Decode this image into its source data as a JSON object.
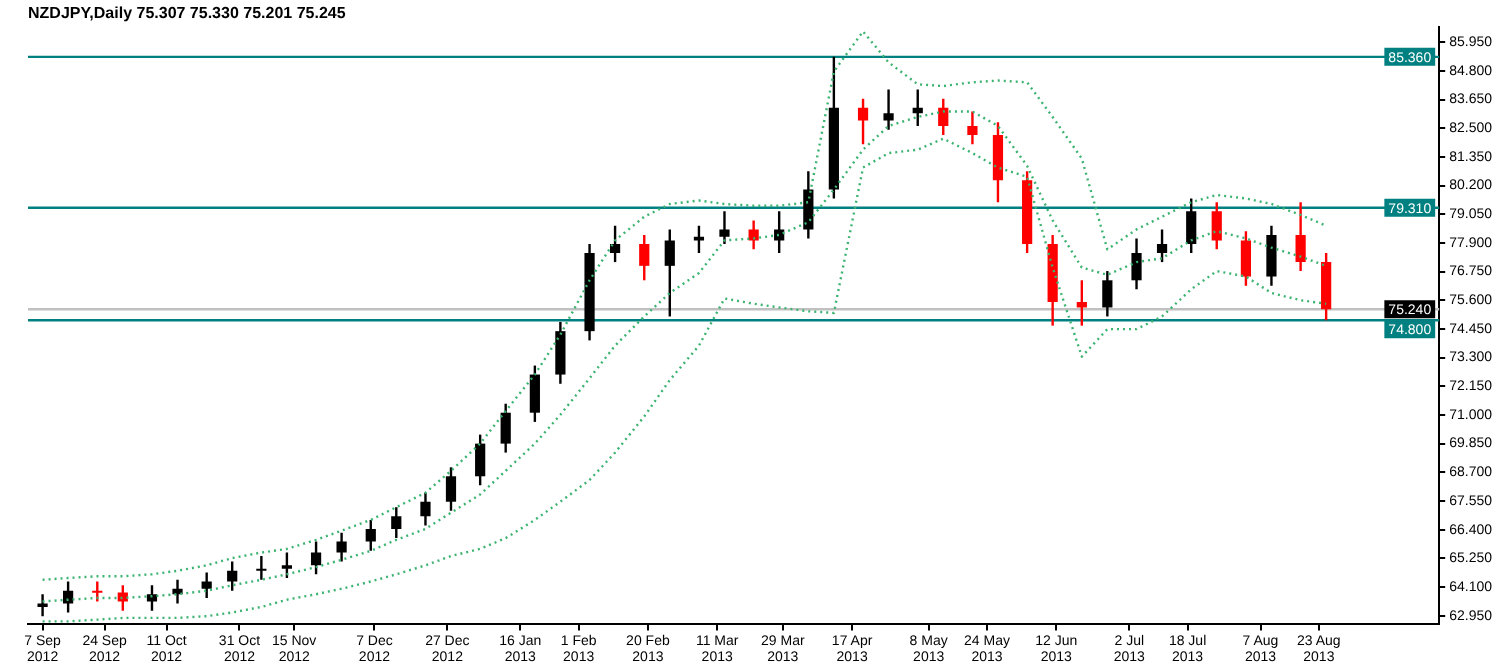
{
  "chart_data": {
    "type": "candlestick",
    "title": "NZDJPY,Daily 75.307 75.330 75.201 75.245",
    "x": [
      "2012-09-07",
      "2012-09-14",
      "2012-09-22",
      "2012-09-29",
      "2012-10-07",
      "2012-10-14",
      "2012-10-22",
      "2012-10-29",
      "2012-11-06",
      "2012-11-13",
      "2012-11-21",
      "2012-11-28",
      "2012-12-06",
      "2012-12-13",
      "2012-12-21",
      "2012-12-28",
      "2013-01-05",
      "2013-01-12",
      "2013-01-20",
      "2013-01-27",
      "2013-02-04",
      "2013-02-11",
      "2013-02-19",
      "2013-02-26",
      "2013-03-06",
      "2013-03-13",
      "2013-03-21",
      "2013-03-28",
      "2013-04-05",
      "2013-04-12",
      "2013-04-20",
      "2013-04-27",
      "2013-05-05",
      "2013-05-12",
      "2013-05-20",
      "2013-05-27",
      "2013-06-04",
      "2013-06-11",
      "2013-06-19",
      "2013-06-26",
      "2013-07-04",
      "2013-07-11",
      "2013-07-19",
      "2013-07-26",
      "2013-08-03",
      "2013-08-10",
      "2013-08-18",
      "2013-08-25"
    ],
    "ohlc": [
      [
        63.3,
        63.81,
        62.93,
        63.44
      ],
      [
        63.44,
        64.32,
        63.08,
        63.95
      ],
      [
        63.95,
        64.32,
        63.52,
        63.88
      ],
      [
        63.88,
        64.17,
        63.15,
        63.52
      ],
      [
        63.52,
        64.17,
        63.15,
        63.81
      ],
      [
        63.81,
        64.39,
        63.44,
        64.03
      ],
      [
        64.03,
        64.68,
        63.66,
        64.32
      ],
      [
        64.32,
        65.12,
        63.95,
        64.75
      ],
      [
        64.75,
        65.34,
        64.39,
        64.83
      ],
      [
        64.83,
        65.48,
        64.46,
        64.97
      ],
      [
        64.97,
        65.92,
        64.61,
        65.48
      ],
      [
        65.48,
        66.28,
        65.12,
        65.92
      ],
      [
        65.92,
        66.79,
        65.55,
        66.43
      ],
      [
        66.43,
        67.3,
        66.06,
        66.94
      ],
      [
        66.94,
        67.88,
        66.57,
        67.52
      ],
      [
        67.52,
        68.9,
        67.16,
        68.54
      ],
      [
        68.54,
        70.21,
        68.18,
        69.85
      ],
      [
        69.85,
        71.45,
        69.49,
        71.09
      ],
      [
        71.09,
        72.98,
        70.72,
        72.62
      ],
      [
        72.62,
        74.73,
        72.25,
        74.36
      ],
      [
        74.36,
        77.86,
        73.99,
        77.49
      ],
      [
        77.49,
        78.59,
        77.13,
        77.86
      ],
      [
        77.86,
        78.22,
        76.4,
        76.98
      ],
      [
        76.98,
        78.44,
        74.95,
        78.0
      ],
      [
        78.0,
        78.59,
        77.49,
        78.15
      ],
      [
        78.15,
        79.17,
        77.86,
        78.44
      ],
      [
        78.44,
        78.8,
        77.64,
        78.0
      ],
      [
        78.0,
        79.17,
        77.49,
        78.44
      ],
      [
        78.44,
        80.77,
        78.08,
        80.04
      ],
      [
        80.04,
        85.36,
        79.68,
        83.32
      ],
      [
        83.32,
        83.68,
        81.86,
        82.81
      ],
      [
        82.81,
        84.05,
        82.44,
        83.1
      ],
      [
        83.1,
        84.05,
        82.59,
        83.32
      ],
      [
        83.32,
        83.68,
        82.23,
        82.59
      ],
      [
        82.59,
        83.17,
        81.86,
        82.23
      ],
      [
        82.23,
        82.74,
        79.53,
        80.41
      ],
      [
        80.41,
        80.77,
        77.49,
        77.86
      ],
      [
        77.86,
        78.22,
        74.58,
        75.53
      ],
      [
        75.53,
        76.4,
        74.58,
        75.31
      ],
      [
        75.31,
        76.77,
        74.95,
        76.4
      ],
      [
        76.4,
        78.08,
        76.04,
        77.49
      ],
      [
        77.49,
        78.44,
        77.13,
        77.86
      ],
      [
        77.86,
        79.68,
        77.49,
        79.17
      ],
      [
        79.17,
        79.53,
        77.64,
        78.0
      ],
      [
        78.0,
        78.37,
        76.18,
        76.55
      ],
      [
        76.55,
        78.59,
        76.18,
        78.22
      ],
      [
        78.22,
        79.53,
        76.77,
        77.13
      ],
      [
        77.13,
        77.49,
        74.8,
        75.24
      ]
    ],
    "colors": [
      "#000000",
      "#000000",
      "#ff0000",
      "#ff0000",
      "#000000",
      "#000000",
      "#000000",
      "#000000",
      "#000000",
      "#000000",
      "#000000",
      "#000000",
      "#000000",
      "#000000",
      "#000000",
      "#000000",
      "#000000",
      "#000000",
      "#000000",
      "#000000",
      "#000000",
      "#000000",
      "#ff0000",
      "#000000",
      "#000000",
      "#000000",
      "#ff0000",
      "#000000",
      "#000000",
      "#000000",
      "#ff0000",
      "#000000",
      "#000000",
      "#ff0000",
      "#ff0000",
      "#ff0000",
      "#ff0000",
      "#ff0000",
      "#ff0000",
      "#000000",
      "#000000",
      "#000000",
      "#000000",
      "#ff0000",
      "#ff0000",
      "#000000",
      "#ff0000",
      "#ff0000"
    ],
    "series": [
      {
        "type": "line",
        "color": "#3cb371",
        "line_style": "dotted",
        "values": [
          64.39,
          64.46,
          64.53,
          64.53,
          64.61,
          64.75,
          64.97,
          65.26,
          65.48,
          65.63,
          65.99,
          66.36,
          66.79,
          67.3,
          67.88,
          68.76,
          69.85,
          71.16,
          72.62,
          74.22,
          76.4,
          78.0,
          78.95,
          79.46,
          79.6,
          79.46,
          79.39,
          79.39,
          79.53,
          84.77,
          86.38,
          85.14,
          84.26,
          84.19,
          84.34,
          84.41,
          84.34,
          82.95,
          81.28,
          77.64,
          78.44,
          78.95,
          79.53,
          79.82,
          79.68,
          79.46,
          79.02,
          78.59
        ]
      },
      {
        "type": "line",
        "color": "#3cb371",
        "line_style": "dotted",
        "values": [
          63.52,
          63.59,
          63.66,
          63.66,
          63.73,
          63.81,
          63.95,
          64.17,
          64.39,
          64.61,
          64.9,
          65.19,
          65.55,
          65.99,
          66.43,
          67.08,
          67.81,
          68.76,
          69.85,
          71.01,
          72.47,
          73.78,
          74.95,
          75.89,
          76.69,
          78.0,
          78.08,
          78.22,
          78.73,
          80.04,
          81.64,
          82.59,
          82.95,
          83.17,
          83.17,
          82.59,
          80.99,
          78.8,
          76.91,
          76.62,
          77.13,
          77.28,
          78.0,
          78.37,
          78.08,
          77.71,
          77.35,
          76.98
        ]
      },
      {
        "type": "line",
        "color": "#3cb371",
        "line_style": "dotted",
        "values": [
          62.72,
          62.72,
          62.79,
          62.86,
          62.86,
          62.86,
          62.93,
          63.08,
          63.3,
          63.59,
          63.81,
          64.03,
          64.32,
          64.61,
          64.97,
          65.34,
          65.63,
          66.06,
          66.79,
          67.52,
          68.39,
          69.49,
          70.94,
          72.4,
          73.78,
          75.67,
          75.46,
          75.31,
          75.16,
          75.09,
          80.92,
          81.5,
          81.64,
          82.08,
          81.5,
          80.92,
          80.55,
          76.91,
          73.34,
          74.44,
          74.44,
          74.95,
          76.04,
          76.77,
          76.55,
          75.89,
          75.6,
          75.46
        ]
      }
    ],
    "xlim": [
      "2012-09-03",
      "2013-09-25"
    ],
    "xticks": [
      {
        "value": "2012-09-07",
        "label": "7 Sep 2012"
      },
      {
        "value": "2012-09-24",
        "label": "24 Sep 2012"
      },
      {
        "value": "2012-10-11",
        "label": "11 Oct 2012"
      },
      {
        "value": "2012-10-31",
        "label": "31 Oct 2012"
      },
      {
        "value": "2012-11-15",
        "label": "15 Nov 2012"
      },
      {
        "value": "2012-12-07",
        "label": "7 Dec 2012"
      },
      {
        "value": "2012-12-27",
        "label": "27 Dec 2012"
      },
      {
        "value": "2013-01-16",
        "label": "16 Jan 2013"
      },
      {
        "value": "2013-02-01",
        "label": "1 Feb 2013"
      },
      {
        "value": "2013-02-20",
        "label": "20 Feb 2013"
      },
      {
        "value": "2013-03-11",
        "label": "11 Mar 2013"
      },
      {
        "value": "2013-03-29",
        "label": "29 Mar 2013"
      },
      {
        "value": "2013-04-17",
        "label": "17 Apr 2013"
      },
      {
        "value": "2013-05-08",
        "label": "8 May 2013"
      },
      {
        "value": "2013-05-24",
        "label": "24 May 2013"
      },
      {
        "value": "2013-06-12",
        "label": "12 Jun 2013"
      },
      {
        "value": "2013-07-02",
        "label": "2 Jul 2013"
      },
      {
        "value": "2013-07-18",
        "label": "18 Jul 2013"
      },
      {
        "value": "2013-08-07",
        "label": "7 Aug 2013"
      },
      {
        "value": "2013-08-23",
        "label": "23 Aug 2013"
      }
    ],
    "ylim": [
      62.6,
      86.55
    ],
    "yticks": [
      {
        "value": 62.95,
        "label": "62.950"
      },
      {
        "value": 64.1,
        "label": "64.100"
      },
      {
        "value": 65.25,
        "label": "65.250"
      },
      {
        "value": 66.4,
        "label": "66.400"
      },
      {
        "value": 67.55,
        "label": "67.550"
      },
      {
        "value": 68.7,
        "label": "68.700"
      },
      {
        "value": 69.85,
        "label": "69.850"
      },
      {
        "value": 71.0,
        "label": "71.000"
      },
      {
        "value": 72.15,
        "label": "72.150"
      },
      {
        "value": 73.3,
        "label": "73.300"
      },
      {
        "value": 74.45,
        "label": "74.450"
      },
      {
        "value": 75.6,
        "label": "75.600"
      },
      {
        "value": 76.75,
        "label": "76.750"
      },
      {
        "value": 77.9,
        "label": "77.900"
      },
      {
        "value": 79.05,
        "label": "79.050"
      },
      {
        "value": 80.2,
        "label": "80.200"
      },
      {
        "value": 81.35,
        "label": "81.350"
      },
      {
        "value": 82.5,
        "label": "82.500"
      },
      {
        "value": 83.65,
        "label": "83.650"
      },
      {
        "value": 84.8,
        "label": "84.800"
      },
      {
        "value": 85.95,
        "label": "85.950"
      }
    ],
    "ref_lines": [
      {
        "axis": "y",
        "value": 85.36,
        "label": "85.360",
        "color": "#008080"
      },
      {
        "axis": "y",
        "value": 79.31,
        "label": "79.310",
        "color": "#008080"
      },
      {
        "axis": "y",
        "value": 75.24,
        "label": "75.240",
        "color": "#c0c0c0"
      },
      {
        "axis": "y",
        "value": 74.8,
        "label": "74.800",
        "color": "#008080"
      }
    ]
  }
}
